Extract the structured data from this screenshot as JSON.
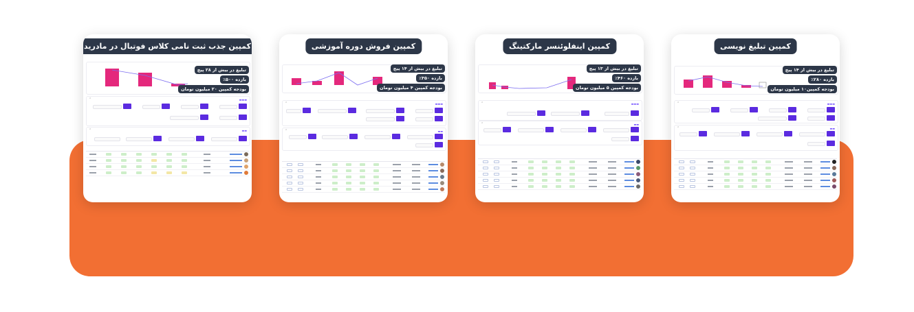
{
  "cards": [
    {
      "title": "کمپین تبلیغ نویسی",
      "lines": [
        "تبلیغ در بیش از ۱۴ پیج",
        "بازده ۲۸۰٪",
        "بودجه کمپین۱۰ میلیون تومان"
      ]
    },
    {
      "title": "کمپین اینفلوئنسر مارکتینگ",
      "lines": [
        "تبلیغ در بیش از ۱۳ پیج",
        "بازده ۴۶۰٪",
        "بودجه کمپین ۵ میلیون تومان"
      ]
    },
    {
      "title": "کمپین فروش دوره آموزشی",
      "lines": [
        "تبلیغ در بیش از ۱۴ پیج",
        "بازده ۳۵۰٪",
        "بودجه کمپین ۴ میلیون تومان"
      ]
    },
    {
      "title": "کمپین جذب ثبت نامی کلاس فوتبال در مادرید",
      "lines": [
        "تبلیغ در بیش از ۲۸ پیج",
        "بازده ۵۰۰٪",
        "بودجه کمپین ۲۰ میلیون تومان"
      ]
    }
  ],
  "colors": {
    "accent": "#f26f33",
    "badge": "#2d3748",
    "bar": "#e4287c",
    "stat": "#5b2be0"
  }
}
